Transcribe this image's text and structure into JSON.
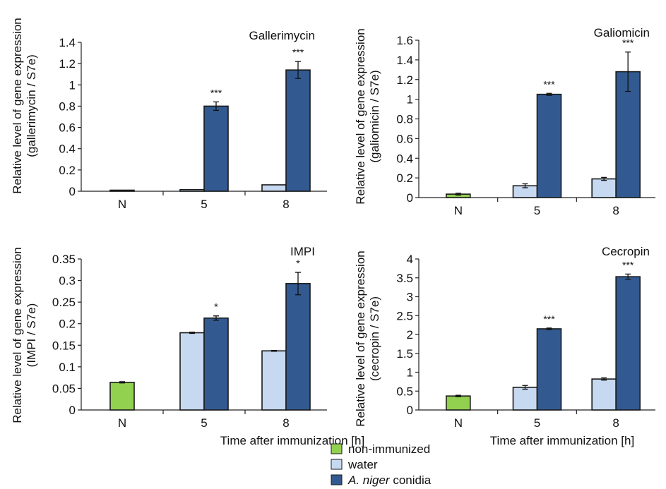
{
  "colors": {
    "non_immunized": "#92d050",
    "water": "#c6d9f1",
    "conidia": "#325a91"
  },
  "legend": {
    "non_immunized": "non-immunized",
    "water": "water",
    "conidia_italic": "A. niger",
    "conidia_rest": " conidia"
  },
  "x_axis_title": "Time after immunization [h]",
  "chart_data": [
    {
      "type": "bar",
      "title": "Gallerimycin",
      "ylabel_line1": "Relative level of gene expression",
      "ylabel_line2": "(gallerimycin / S7e)",
      "categories": [
        "N",
        "5",
        "8"
      ],
      "ylim": [
        0,
        1.4
      ],
      "yticks": [
        0,
        0.2,
        0.4,
        0.6,
        0.8,
        1,
        1.2,
        1.4
      ],
      "ytick_labels": [
        "0",
        "0.2",
        "0.4",
        "0.6",
        "0.8",
        "1",
        "1.2",
        "1.4"
      ],
      "series": [
        {
          "name": "non-immunized",
          "values": [
            0.01,
            null,
            null
          ],
          "errors": [
            0,
            null,
            null
          ]
        },
        {
          "name": "water",
          "values": [
            null,
            0.015,
            0.06
          ],
          "errors": [
            null,
            0,
            0
          ]
        },
        {
          "name": "A. niger conidia",
          "values": [
            null,
            0.8,
            1.14
          ],
          "errors": [
            null,
            0.04,
            0.08
          ]
        }
      ],
      "significance": [
        "",
        "***",
        "***"
      ]
    },
    {
      "type": "bar",
      "title": "Galiomicin",
      "ylabel_line1": "Relative level of gene expression",
      "ylabel_line2": "(galiomicin / S7e)",
      "categories": [
        "N",
        "5",
        "8"
      ],
      "ylim": [
        0,
        1.6
      ],
      "yticks": [
        0,
        0.2,
        0.4,
        0.6,
        0.8,
        1,
        1.2,
        1.4,
        1.6
      ],
      "ytick_labels": [
        "0",
        "0.2",
        "0.4",
        "0.6",
        "0.8",
        "1",
        "1.2",
        "1.4",
        "1.6"
      ],
      "series": [
        {
          "name": "non-immunized",
          "values": [
            0.035,
            null,
            null
          ],
          "errors": [
            0.01,
            null,
            null
          ]
        },
        {
          "name": "water",
          "values": [
            null,
            0.12,
            0.19
          ],
          "errors": [
            null,
            0.02,
            0.015
          ]
        },
        {
          "name": "A. niger conidia",
          "values": [
            null,
            1.05,
            1.28
          ],
          "errors": [
            null,
            0.01,
            0.2
          ]
        }
      ],
      "significance": [
        "",
        "***",
        "***"
      ]
    },
    {
      "type": "bar",
      "title": "IMPI",
      "ylabel_line1": "Relative level of gene expression",
      "ylabel_line2": "(IMPI / S7e)",
      "categories": [
        "N",
        "5",
        "8"
      ],
      "ylim": [
        0,
        0.35
      ],
      "yticks": [
        0,
        0.05,
        0.1,
        0.15,
        0.2,
        0.25,
        0.3,
        0.35
      ],
      "ytick_labels": [
        "0",
        "0.05",
        "0.1",
        "0.15",
        "0.2",
        "0.25",
        "0.3",
        "0.35"
      ],
      "series": [
        {
          "name": "non-immunized",
          "values": [
            0.064,
            null,
            null
          ],
          "errors": [
            0.0015,
            null,
            null
          ]
        },
        {
          "name": "water",
          "values": [
            null,
            0.179,
            0.137
          ],
          "errors": [
            null,
            0.0015,
            0.001
          ]
        },
        {
          "name": "A. niger conidia",
          "values": [
            null,
            0.213,
            0.293
          ],
          "errors": [
            null,
            0.005,
            0.026
          ]
        }
      ],
      "significance": [
        "",
        "*",
        "*"
      ]
    },
    {
      "type": "bar",
      "title": "Cecropin",
      "ylabel_line1": "Relative level of gene expression",
      "ylabel_line2": "(cecropin / S7e)",
      "categories": [
        "N",
        "5",
        "8"
      ],
      "ylim": [
        0,
        4
      ],
      "yticks": [
        0,
        0.5,
        1,
        1.5,
        2,
        2.5,
        3,
        3.5,
        4
      ],
      "ytick_labels": [
        "0",
        "0.5",
        "1",
        "1.5",
        "2",
        "2.5",
        "3",
        "3.5",
        "4"
      ],
      "series": [
        {
          "name": "non-immunized",
          "values": [
            0.37,
            null,
            null
          ],
          "errors": [
            0.02,
            null,
            null
          ]
        },
        {
          "name": "water",
          "values": [
            null,
            0.6,
            0.82
          ],
          "errors": [
            null,
            0.05,
            0.03
          ]
        },
        {
          "name": "A. niger conidia",
          "values": [
            null,
            2.15,
            3.53
          ],
          "errors": [
            null,
            0.02,
            0.07
          ]
        }
      ],
      "significance": [
        "",
        "***",
        "***"
      ]
    }
  ]
}
